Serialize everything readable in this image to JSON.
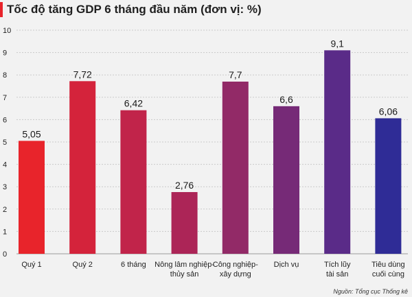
{
  "header": {
    "title": "Tốc độ tăng GDP 6 tháng đầu năm (đơn vị: %)"
  },
  "footer": {
    "source": "Nguồn: Tổng cục Thống kê"
  },
  "chart_data": {
    "type": "bar",
    "title": "Tốc độ tăng GDP 6 tháng đầu năm (đơn vị: %)",
    "xlabel": "",
    "ylabel": "",
    "ylim": [
      0,
      10
    ],
    "yticks": [
      0,
      1,
      2,
      3,
      4,
      5,
      6,
      7,
      8,
      9,
      10
    ],
    "grid": true,
    "categories": [
      [
        "Quý 1"
      ],
      [
        "Quý 2"
      ],
      [
        "6 tháng"
      ],
      [
        "Nông lâm nghiệp-",
        "thủy sản"
      ],
      [
        "Công nghiệp-",
        "xây dựng"
      ],
      [
        "Dịch vụ"
      ],
      [
        "Tích lũy",
        "tài sản"
      ],
      [
        "Tiêu dùng",
        "cuối cùng"
      ]
    ],
    "values": [
      5.05,
      7.72,
      6.42,
      2.76,
      7.7,
      6.6,
      9.1,
      6.06
    ],
    "value_labels": [
      "5,05",
      "7,72",
      "6,42",
      "2,76",
      "7,7",
      "6,6",
      "9,1",
      "6,06"
    ],
    "colors": [
      "#e8242b",
      "#d4233b",
      "#c1244a",
      "#ac2557",
      "#922a67",
      "#762a77",
      "#5a2b88",
      "#2f2c96"
    ]
  }
}
